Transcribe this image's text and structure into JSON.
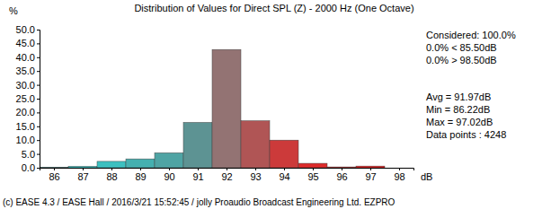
{
  "chart_data": {
    "type": "histogram",
    "title": "Distribution of Values for Direct SPL (Z)  - 2000 Hz (One Octave)",
    "y_label": "%",
    "x_label": "dB",
    "bins": [
      85.5,
      86.5,
      87.5,
      88.5,
      89.5,
      90.5,
      91.5,
      92.5,
      93.5,
      94.5,
      95.5,
      96.5,
      97.5,
      98.5
    ],
    "values": [
      0.2,
      0.5,
      2.3,
      3.2,
      5.4,
      16.4,
      42.8,
      17.0,
      10.0,
      1.6,
      0.3,
      0.6,
      0.0
    ],
    "colors": [
      "#2ec9c9",
      "#33c4c4",
      "#3cc0c0",
      "#45b0b0",
      "#4fa4a4",
      "#5d9393",
      "#937373",
      "#b05555",
      "#cc3a3a",
      "#dd2a2a",
      "#e42020",
      "#ea1a1a",
      "#ee1515"
    ],
    "xlim": [
      85.5,
      98.5
    ],
    "xticks": [
      86,
      87,
      88,
      89,
      90,
      91,
      92,
      93,
      94,
      95,
      96,
      97,
      98
    ],
    "ylim": [
      0,
      50
    ],
    "yticks": [
      {
        "value": 0,
        "label": "0.0"
      },
      {
        "value": 5,
        "label": "5.0"
      },
      {
        "value": 10,
        "label": "10.0"
      },
      {
        "value": 15,
        "label": "15.0"
      },
      {
        "value": 20,
        "label": "20.0"
      },
      {
        "value": 25,
        "label": "25.0"
      },
      {
        "value": 30,
        "label": "30.0"
      },
      {
        "value": 35,
        "label": "35.0"
      },
      {
        "value": 40,
        "label": "40.0"
      },
      {
        "value": 45,
        "label": "45.0"
      },
      {
        "value": 50,
        "label": "50.0"
      }
    ],
    "grid": false,
    "annotations": [
      "Considered: 100.0%",
      "0.0% < 85.50dB",
      "0.0% > 98.50dB",
      "Avg = 91.97dB",
      "Min = 86.22dB",
      "Max = 97.02dB",
      "Data points : 4248"
    ],
    "footer": "(c) EASE 4.3  / EASE Hall  / 2016/3/21 15:52:45  / jolly Proaudio Broadcast Engineering Ltd. EZPRO"
  }
}
